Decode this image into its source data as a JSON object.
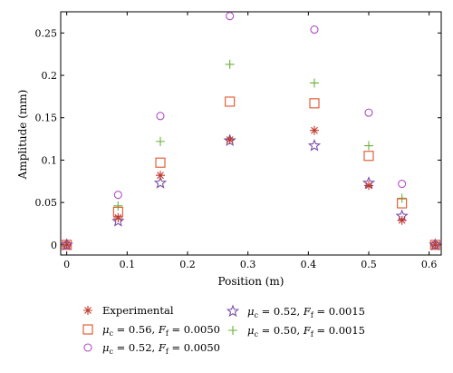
{
  "chart_data": {
    "type": "scatter",
    "xlabel": "Position (m)",
    "ylabel": "Amplitude (mm)",
    "xlim": [
      -0.01,
      0.62
    ],
    "ylim": [
      -0.012,
      0.275
    ],
    "xticks": [
      0,
      0.1,
      0.2,
      0.3,
      0.4,
      0.5,
      0.6
    ],
    "xtick_labels": [
      "0",
      "0.1",
      "0.2",
      "0.3",
      "0.4",
      "0.5",
      "0.6"
    ],
    "yticks": [
      0,
      0.05,
      0.1,
      0.15,
      0.2,
      0.25
    ],
    "ytick_labels": [
      "0",
      "0.05",
      "0.1",
      "0.15",
      "0.2",
      "0.25"
    ],
    "grid": false,
    "legend_position": "below",
    "series": [
      {
        "name": "Experimental",
        "marker": "asterisk",
        "color": "#c0392b",
        "x": [
          0,
          0.085,
          0.155,
          0.27,
          0.41,
          0.5,
          0.555,
          0.61
        ],
        "y": [
          0,
          0.032,
          0.082,
          0.124,
          0.135,
          0.07,
          0.029,
          0
        ]
      },
      {
        "name": "μc = 0.56, Ff = 0.0050",
        "marker": "square",
        "color": "#e0532a",
        "x": [
          0,
          0.085,
          0.155,
          0.27,
          0.41,
          0.5,
          0.555,
          0.61
        ],
        "y": [
          0,
          0.039,
          0.097,
          0.169,
          0.167,
          0.105,
          0.049,
          0
        ]
      },
      {
        "name": "μc = 0.52, Ff = 0.0050",
        "marker": "circle",
        "color": "#b04fc4",
        "x": [
          0,
          0.085,
          0.155,
          0.27,
          0.41,
          0.5,
          0.555,
          0.61
        ],
        "y": [
          0,
          0.059,
          0.152,
          0.27,
          0.254,
          0.156,
          0.072,
          0
        ]
      },
      {
        "name": "μc = 0.52, Ff = 0.0015",
        "marker": "star",
        "color": "#7b4fa8",
        "x": [
          0,
          0.085,
          0.155,
          0.27,
          0.41,
          0.5,
          0.555,
          0.61
        ],
        "y": [
          0,
          0.028,
          0.073,
          0.123,
          0.117,
          0.073,
          0.034,
          0
        ]
      },
      {
        "name": "μc = 0.50, Ff = 0.0015",
        "marker": "plus",
        "color": "#6bb13a",
        "x": [
          0,
          0.085,
          0.155,
          0.27,
          0.41,
          0.5,
          0.555,
          0.61
        ],
        "y": [
          0,
          0.046,
          0.122,
          0.213,
          0.191,
          0.117,
          0.055,
          0
        ]
      }
    ],
    "legend_labels": [
      {
        "pre": "",
        "mu": "",
        "mid": "Experimental",
        "ff": "",
        "post": ""
      },
      {
        "pre": "μ",
        "mu": "c",
        "mid": " = 0.56, ",
        "ff": "f",
        "post": " = 0.0050"
      },
      {
        "pre": "μ",
        "mu": "c",
        "mid": " = 0.52, ",
        "ff": "f",
        "post": " = 0.0050"
      },
      {
        "pre": "μ",
        "mu": "c",
        "mid": " = 0.52, ",
        "ff": "f",
        "post": " = 0.0015"
      },
      {
        "pre": "μ",
        "mu": "c",
        "mid": " = 0.50, ",
        "ff": "f",
        "post": " = 0.0015"
      }
    ]
  }
}
